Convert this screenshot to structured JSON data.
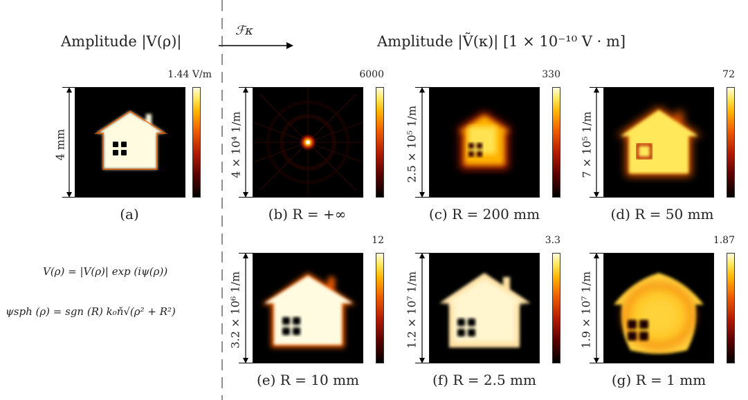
{
  "headers": {
    "left": "Amplitude |V(ρ)|",
    "arrow_label": "ℱκ",
    "right": "Amplitude |Ṽ(κ)| [1 × 10⁻¹⁰ V · m]"
  },
  "panels": [
    {
      "caption": "(a)",
      "cbar_max": "1.44 V/m",
      "scale": "4 mm"
    },
    {
      "caption": "(b) R = +∞",
      "cbar_max": "6000",
      "scale": "4 × 10⁴ 1/m"
    },
    {
      "caption": "(c) R = 200 mm",
      "cbar_max": "330",
      "scale": "2.5 × 10⁵ 1/m"
    },
    {
      "caption": "(d) R = 50 mm",
      "cbar_max": "72",
      "scale": "7 × 10⁵ 1/m"
    },
    {
      "caption": "(e) R = 10 mm",
      "cbar_max": "12",
      "scale": "3.2 × 10⁶ 1/m"
    },
    {
      "caption": "(f) R = 2.5 mm",
      "cbar_max": "3.3",
      "scale": "1.2 × 10⁷ 1/m"
    },
    {
      "caption": "(g) R = 1 mm",
      "cbar_max": "1.87",
      "scale": "1.9 × 10⁷ 1/m"
    }
  ],
  "equations": {
    "eq1": "V(ρ) = |V(ρ)| exp (iψ(ρ))",
    "eq2": "ψsph (ρ) = sgn (R) k₀ň√(ρ² + R²)"
  },
  "colors": {
    "colormap": [
      "#000000",
      "#5a0000",
      "#b21b00",
      "#ee5c00",
      "#ffb300",
      "#ffe85a",
      "#fffbe0"
    ]
  },
  "icons": {
    "house": "house-icon",
    "arrow": "right-arrow-icon"
  }
}
